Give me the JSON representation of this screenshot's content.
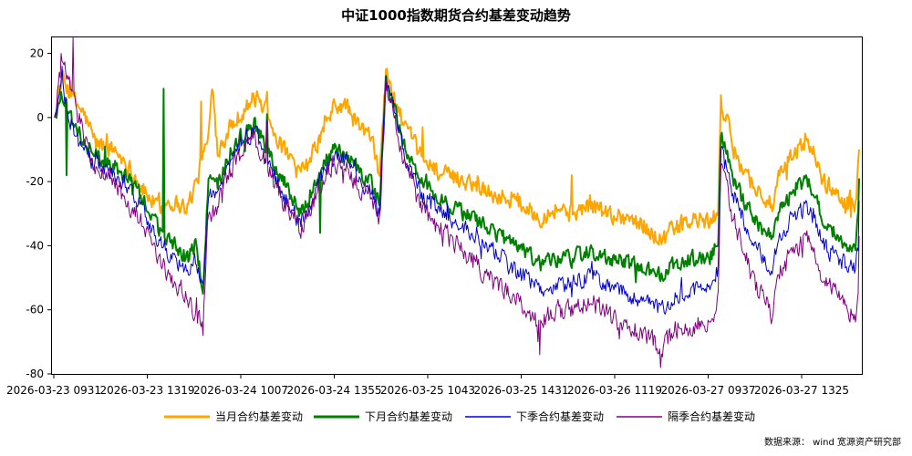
{
  "chart_data": {
    "type": "line",
    "title": "中证1000指数期货合约基差变动趋势",
    "xlabel": "",
    "ylabel": "",
    "ylim": [
      -80,
      25
    ],
    "yticks": [
      20,
      0,
      -20,
      -40,
      -60,
      -80
    ],
    "x_tick_labels": [
      "2026-03-23 0931",
      "2026-03-23 1319",
      "2026-03-24 1007",
      "2026-03-24 1355",
      "2026-03-25 1043",
      "2026-03-25 1431",
      "2026-03-26 1119",
      "2026-03-27 0937",
      "2026-03-27 1325"
    ],
    "grid": false,
    "legend_position": "bottom",
    "n_points": 880,
    "series": [
      {
        "name": "当月合约基差变动",
        "color": "#FFA500",
        "keypoints": [
          [
            0,
            0
          ],
          [
            8,
            12
          ],
          [
            20,
            6
          ],
          [
            32,
            1
          ],
          [
            45,
            -8
          ],
          [
            65,
            -10
          ],
          [
            78,
            -14
          ],
          [
            95,
            -22
          ],
          [
            112,
            -28
          ],
          [
            125,
            -26
          ],
          [
            145,
            -28
          ],
          [
            155,
            -20
          ],
          [
            168,
            -6
          ],
          [
            172,
            8
          ],
          [
            178,
            -10
          ],
          [
            190,
            -4
          ],
          [
            205,
            2
          ],
          [
            218,
            6
          ],
          [
            232,
            3
          ],
          [
            245,
            -8
          ],
          [
            255,
            -12
          ],
          [
            268,
            -18
          ],
          [
            278,
            -14
          ],
          [
            292,
            -5
          ],
          [
            305,
            3
          ],
          [
            318,
            4
          ],
          [
            330,
            -2
          ],
          [
            345,
            -6
          ],
          [
            355,
            -17
          ],
          [
            362,
            14
          ],
          [
            370,
            7
          ],
          [
            382,
            -3
          ],
          [
            400,
            -12
          ],
          [
            425,
            -18
          ],
          [
            455,
            -20
          ],
          [
            480,
            -24
          ],
          [
            505,
            -26
          ],
          [
            530,
            -31
          ],
          [
            550,
            -28
          ],
          [
            565,
            -30
          ],
          [
            585,
            -27
          ],
          [
            605,
            -30
          ],
          [
            625,
            -31
          ],
          [
            645,
            -34
          ],
          [
            662,
            -38
          ],
          [
            680,
            -34
          ],
          [
            700,
            -32
          ],
          [
            718,
            -33
          ],
          [
            725,
            -28
          ],
          [
            728,
            5
          ],
          [
            733,
            0
          ],
          [
            742,
            -10
          ],
          [
            765,
            -22
          ],
          [
            785,
            -28
          ],
          [
            790,
            -20
          ],
          [
            810,
            -10
          ],
          [
            825,
            -8
          ],
          [
            840,
            -20
          ],
          [
            860,
            -25
          ],
          [
            875,
            -28
          ],
          [
            878,
            -16
          ],
          [
            879,
            -10
          ]
        ],
        "peaks": [
          [
            5,
            10
          ],
          [
            160,
            5
          ],
          [
            173,
            8
          ],
          [
            232,
            8
          ],
          [
            362,
            15
          ],
          [
            402,
            -3
          ],
          [
            565,
            -18
          ],
          [
            728,
            7
          ],
          [
            820,
            -5
          ],
          [
            879,
            -10
          ]
        ]
      },
      {
        "name": "下月合约基差变动",
        "color": "#008000",
        "keypoints": [
          [
            0,
            0
          ],
          [
            8,
            8
          ],
          [
            20,
            -2
          ],
          [
            32,
            -8
          ],
          [
            45,
            -12
          ],
          [
            65,
            -15
          ],
          [
            78,
            -18
          ],
          [
            95,
            -25
          ],
          [
            112,
            -34
          ],
          [
            125,
            -38
          ],
          [
            145,
            -44
          ],
          [
            155,
            -40
          ],
          [
            162,
            -55
          ],
          [
            168,
            -20
          ],
          [
            178,
            -22
          ],
          [
            190,
            -12
          ],
          [
            205,
            -5
          ],
          [
            218,
            -2
          ],
          [
            232,
            -10
          ],
          [
            245,
            -18
          ],
          [
            255,
            -22
          ],
          [
            268,
            -30
          ],
          [
            278,
            -25
          ],
          [
            292,
            -15
          ],
          [
            305,
            -10
          ],
          [
            318,
            -12
          ],
          [
            330,
            -16
          ],
          [
            345,
            -20
          ],
          [
            355,
            -27
          ],
          [
            362,
            12
          ],
          [
            370,
            4
          ],
          [
            382,
            -9
          ],
          [
            400,
            -20
          ],
          [
            425,
            -26
          ],
          [
            455,
            -31
          ],
          [
            480,
            -36
          ],
          [
            505,
            -40
          ],
          [
            530,
            -46
          ],
          [
            550,
            -44
          ],
          [
            565,
            -44
          ],
          [
            585,
            -41
          ],
          [
            605,
            -44
          ],
          [
            625,
            -45
          ],
          [
            645,
            -48
          ],
          [
            662,
            -49
          ],
          [
            680,
            -45
          ],
          [
            700,
            -44
          ],
          [
            718,
            -43
          ],
          [
            725,
            -38
          ],
          [
            728,
            -6
          ],
          [
            733,
            -10
          ],
          [
            742,
            -20
          ],
          [
            765,
            -32
          ],
          [
            785,
            -38
          ],
          [
            790,
            -30
          ],
          [
            810,
            -22
          ],
          [
            825,
            -20
          ],
          [
            840,
            -32
          ],
          [
            860,
            -38
          ],
          [
            875,
            -42
          ],
          [
            878,
            -30
          ],
          [
            879,
            -19
          ]
        ],
        "peaks": [
          [
            13,
            -18
          ],
          [
            119,
            9
          ],
          [
            162,
            -55
          ],
          [
            232,
            1
          ],
          [
            290,
            -36
          ],
          [
            362,
            13
          ],
          [
            565,
            -47
          ],
          [
            728,
            -6
          ],
          [
            879,
            -19
          ]
        ]
      },
      {
        "name": "下季合约基差变动",
        "color": "#0000CD",
        "keypoints": [
          [
            0,
            0
          ],
          [
            8,
            10
          ],
          [
            20,
            -4
          ],
          [
            32,
            -11
          ],
          [
            45,
            -15
          ],
          [
            65,
            -18
          ],
          [
            78,
            -21
          ],
          [
            95,
            -28
          ],
          [
            112,
            -38
          ],
          [
            125,
            -42
          ],
          [
            145,
            -48
          ],
          [
            155,
            -45
          ],
          [
            162,
            -52
          ],
          [
            168,
            -24
          ],
          [
            178,
            -25
          ],
          [
            190,
            -15
          ],
          [
            205,
            -8
          ],
          [
            218,
            -4
          ],
          [
            232,
            -13
          ],
          [
            245,
            -21
          ],
          [
            255,
            -26
          ],
          [
            268,
            -33
          ],
          [
            278,
            -28
          ],
          [
            292,
            -18
          ],
          [
            305,
            -13
          ],
          [
            318,
            -14
          ],
          [
            330,
            -19
          ],
          [
            345,
            -23
          ],
          [
            355,
            -30
          ],
          [
            362,
            12
          ],
          [
            370,
            3
          ],
          [
            382,
            -11
          ],
          [
            400,
            -24
          ],
          [
            425,
            -30
          ],
          [
            455,
            -36
          ],
          [
            480,
            -42
          ],
          [
            505,
            -48
          ],
          [
            530,
            -54
          ],
          [
            550,
            -52
          ],
          [
            565,
            -52
          ],
          [
            585,
            -49
          ],
          [
            605,
            -53
          ],
          [
            625,
            -55
          ],
          [
            645,
            -58
          ],
          [
            662,
            -60
          ],
          [
            680,
            -55
          ],
          [
            700,
            -54
          ],
          [
            718,
            -52
          ],
          [
            725,
            -47
          ],
          [
            728,
            -10
          ],
          [
            733,
            -14
          ],
          [
            742,
            -24
          ],
          [
            765,
            -40
          ],
          [
            785,
            -48
          ],
          [
            790,
            -38
          ],
          [
            810,
            -30
          ],
          [
            825,
            -28
          ],
          [
            840,
            -40
          ],
          [
            860,
            -45
          ],
          [
            875,
            -48
          ],
          [
            878,
            -40
          ],
          [
            879,
            -26
          ]
        ],
        "peaks": [
          [
            8,
            16
          ],
          [
            162,
            -52
          ],
          [
            232,
            -1
          ],
          [
            362,
            13
          ],
          [
            565,
            -56
          ],
          [
            728,
            -10
          ],
          [
            879,
            -26
          ]
        ]
      },
      {
        "name": "隔季合约基差变动",
        "color": "#800080",
        "keypoints": [
          [
            0,
            0
          ],
          [
            8,
            18
          ],
          [
            20,
            6
          ],
          [
            32,
            -6
          ],
          [
            45,
            -15
          ],
          [
            65,
            -20
          ],
          [
            78,
            -26
          ],
          [
            95,
            -32
          ],
          [
            112,
            -45
          ],
          [
            125,
            -50
          ],
          [
            145,
            -56
          ],
          [
            155,
            -62
          ],
          [
            162,
            -64
          ],
          [
            168,
            -30
          ],
          [
            178,
            -28
          ],
          [
            190,
            -18
          ],
          [
            205,
            -10
          ],
          [
            218,
            -6
          ],
          [
            232,
            -15
          ],
          [
            245,
            -24
          ],
          [
            255,
            -28
          ],
          [
            268,
            -35
          ],
          [
            278,
            -30
          ],
          [
            292,
            -20
          ],
          [
            305,
            -14
          ],
          [
            318,
            -16
          ],
          [
            330,
            -21
          ],
          [
            345,
            -25
          ],
          [
            355,
            -32
          ],
          [
            362,
            10
          ],
          [
            370,
            1
          ],
          [
            382,
            -14
          ],
          [
            400,
            -28
          ],
          [
            425,
            -36
          ],
          [
            455,
            -44
          ],
          [
            480,
            -52
          ],
          [
            505,
            -57
          ],
          [
            530,
            -64
          ],
          [
            550,
            -60
          ],
          [
            565,
            -60
          ],
          [
            585,
            -57
          ],
          [
            605,
            -62
          ],
          [
            625,
            -65
          ],
          [
            645,
            -68
          ],
          [
            662,
            -72
          ],
          [
            680,
            -66
          ],
          [
            700,
            -65
          ],
          [
            718,
            -63
          ],
          [
            725,
            -56
          ],
          [
            728,
            -15
          ],
          [
            733,
            -20
          ],
          [
            742,
            -32
          ],
          [
            765,
            -52
          ],
          [
            785,
            -62
          ],
          [
            790,
            -50
          ],
          [
            810,
            -40
          ],
          [
            825,
            -37
          ],
          [
            840,
            -50
          ],
          [
            860,
            -57
          ],
          [
            875,
            -62
          ],
          [
            878,
            -55
          ],
          [
            879,
            -37
          ]
        ],
        "peaks": [
          [
            7,
            20
          ],
          [
            20,
            25
          ],
          [
            119,
            -44
          ],
          [
            162,
            -68
          ],
          [
            232,
            -2
          ],
          [
            362,
            12
          ],
          [
            530,
            -74
          ],
          [
            662,
            -78
          ],
          [
            728,
            -15
          ],
          [
            879,
            -37
          ]
        ]
      }
    ]
  },
  "source_note": "数据来源： wind  宽源资产研究部"
}
